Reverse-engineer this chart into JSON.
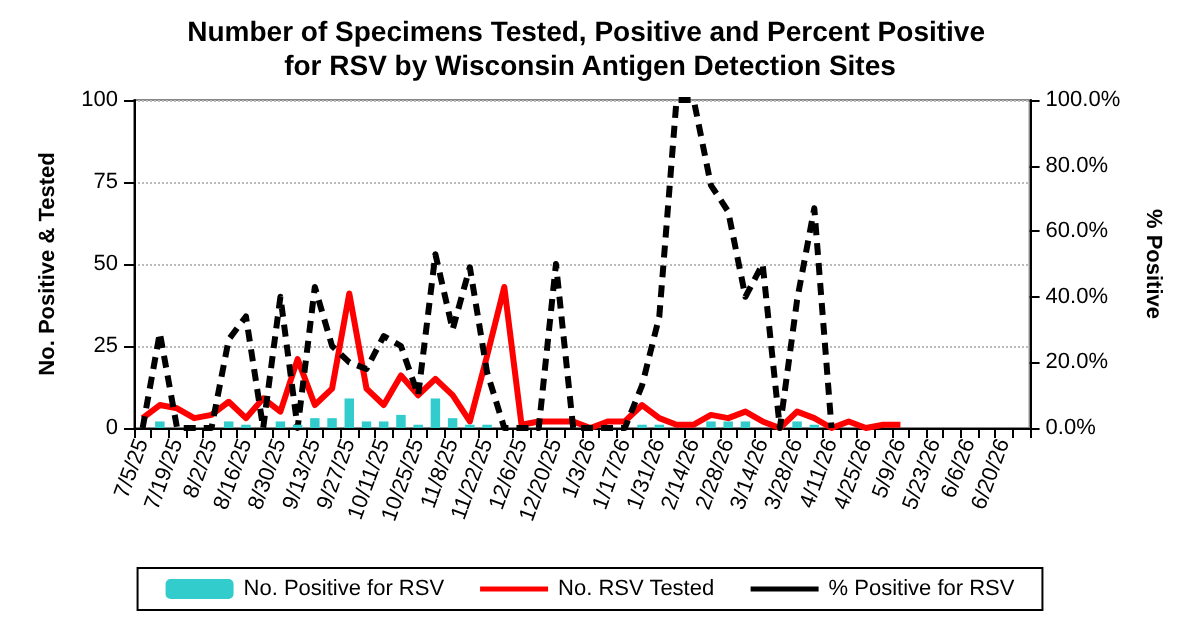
{
  "chart_data": {
    "type": "bar",
    "title": "Number of Specimens Tested, Positive and Percent Positive for RSV by Wisconsin Antigen Detection Sites",
    "ylabel": "No. Positive & Tested",
    "y2label": "% Positive",
    "categories": [
      "7/5/25",
      null,
      "7/19/25",
      null,
      "8/2/25",
      null,
      "8/16/25",
      null,
      "8/30/25",
      null,
      "9/13/25",
      null,
      "9/27/25",
      null,
      "10/11/25",
      null,
      "10/25/25",
      null,
      "11/8/25",
      null,
      "11/22/25",
      null,
      "12/6/25",
      null,
      "12/20/25",
      null,
      "1/3/26",
      null,
      "1/17/26",
      null,
      "1/31/26",
      null,
      "2/14/26",
      null,
      "2/28/26",
      null,
      "3/14/26",
      null,
      "3/28/26",
      null,
      "4/11/26",
      null,
      "4/25/26",
      null,
      "5/9/26",
      null,
      "5/23/26",
      null,
      "6/6/26",
      null,
      "6/20/26",
      null
    ],
    "series": [
      {
        "name": "No. Positive for RSV",
        "color": "#33cccc",
        "values": [
          0,
          2,
          0,
          0,
          0,
          2,
          1,
          0,
          2,
          1,
          3,
          3,
          9,
          2,
          2,
          4,
          1,
          9,
          3,
          1,
          1,
          0,
          0,
          0,
          0,
          0,
          0,
          0,
          0,
          1,
          1,
          0,
          0,
          2,
          2,
          2,
          0,
          0,
          2,
          1,
          0,
          0,
          0,
          0,
          0,
          null,
          null,
          null,
          null,
          null,
          null,
          null
        ]
      },
      {
        "name": "No. RSV Tested",
        "type": "line",
        "color": "#ff0000",
        "line_style": "solid",
        "values": [
          3,
          7,
          6,
          3,
          4,
          8,
          3,
          9,
          5,
          21,
          7,
          12,
          41,
          12,
          7,
          16,
          10,
          15,
          10,
          2,
          22,
          43,
          1,
          2,
          2,
          2,
          0,
          2,
          2,
          7,
          3,
          1,
          1,
          4,
          3,
          5,
          2,
          0,
          5,
          3,
          0,
          2,
          0,
          1,
          1,
          null,
          null,
          null,
          null,
          null,
          null,
          null
        ]
      },
      {
        "name": "% Positive for RSV",
        "type": "line",
        "axis": "y2",
        "color": "#000000",
        "line_style": "dashed",
        "values": [
          0,
          29,
          0,
          0,
          0,
          27,
          34,
          0,
          40,
          0,
          43,
          25,
          20,
          18,
          28,
          25,
          10,
          53,
          30,
          49,
          17,
          0,
          0,
          0,
          50,
          0,
          0,
          0,
          0,
          13,
          34,
          100,
          100,
          74,
          66,
          40,
          50,
          0,
          39,
          67,
          0,
          null,
          null,
          null,
          null,
          null,
          null,
          null,
          null,
          null,
          null,
          null
        ]
      }
    ],
    "ylim": [
      0,
      100
    ],
    "yticks": [
      0,
      25,
      50,
      75,
      100
    ],
    "y2lim": [
      0,
      100
    ],
    "y2ticks": [
      {
        "value": 0,
        "label": "0.0%"
      },
      {
        "value": 20,
        "label": "20.0%"
      },
      {
        "value": 40,
        "label": "40.0%"
      },
      {
        "value": 60,
        "label": "60.0%"
      },
      {
        "value": 80,
        "label": "80.0%"
      },
      {
        "value": 100,
        "label": "100.0%"
      }
    ],
    "grid": "y",
    "legend": "bottom",
    "marker": "none"
  }
}
